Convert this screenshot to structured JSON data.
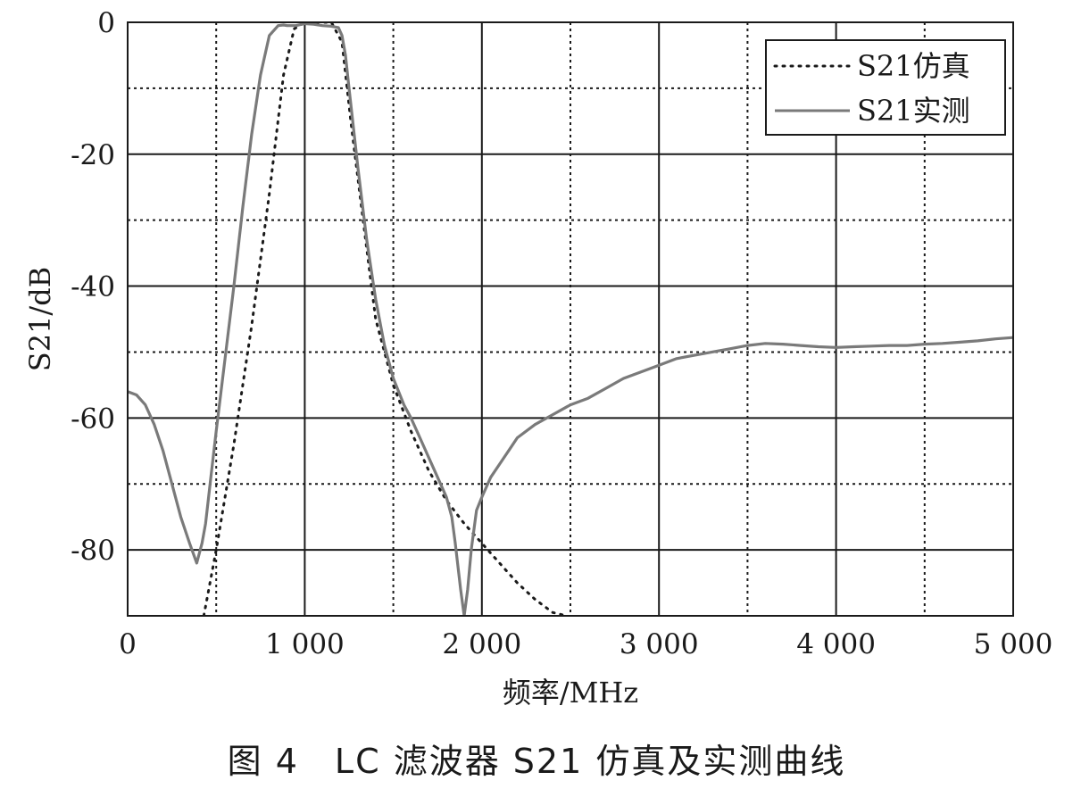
{
  "caption": "图 4　LC 滤波器 S21 仿真及实测曲线",
  "chart_data": {
    "type": "line",
    "xlabel": "频率/MHz",
    "ylabel": "S21/dB",
    "xlim": [
      0,
      5000
    ],
    "ylim": [
      -90,
      0
    ],
    "x_ticks": [
      0,
      1000,
      2000,
      3000,
      4000,
      5000
    ],
    "x_tick_labels": [
      "0",
      "1 000",
      "2 000",
      "3 000",
      "4 000",
      "5 000"
    ],
    "y_ticks": [
      0,
      -20,
      -40,
      -60,
      -80
    ],
    "y_tick_labels": [
      "0",
      "-20",
      "-40",
      "-60",
      "-80"
    ],
    "grid_x_major": [
      1000,
      2000,
      3000,
      4000
    ],
    "grid_x_minor": [
      500,
      1500,
      2500,
      3500,
      4500
    ],
    "grid_y_major": [
      -20,
      -40,
      -60,
      -80
    ],
    "grid_y_minor": [
      -10,
      -30,
      -50,
      -70
    ],
    "grid": true,
    "legend_position": "top-right",
    "colors": {
      "simulated": "#1a1a1a",
      "measured": "#7a7a7a",
      "grid": "#1a1a1a"
    },
    "series": [
      {
        "name": "S21仿真",
        "style": "dotted",
        "x": [
          430,
          500,
          600,
          700,
          800,
          880,
          940,
          1000,
          1050,
          1150,
          1210,
          1260,
          1320,
          1400,
          1500,
          1600,
          1700,
          1800,
          1900,
          2000,
          2100,
          2200,
          2300,
          2400,
          2480
        ],
        "y": [
          -90,
          -80,
          -64,
          -46,
          -26,
          -8,
          -1,
          0,
          0,
          0,
          -3,
          -15,
          -28,
          -45,
          -55,
          -62,
          -68,
          -72.5,
          -76,
          -79,
          -82,
          -85,
          -87.5,
          -89.5,
          -90
        ]
      },
      {
        "name": "S21实测",
        "style": "solid",
        "x": [
          0,
          50,
          100,
          150,
          200,
          250,
          300,
          350,
          390,
          410,
          420,
          440,
          470,
          500,
          550,
          600,
          650,
          700,
          750,
          800,
          850,
          880,
          900,
          950,
          1000,
          1050,
          1100,
          1150,
          1190,
          1210,
          1230,
          1250,
          1300,
          1350,
          1400,
          1450,
          1500,
          1530,
          1560,
          1600,
          1650,
          1700,
          1750,
          1800,
          1830,
          1850,
          1880,
          1900,
          1920,
          1940,
          1970,
          2000,
          2050,
          2100,
          2150,
          2200,
          2300,
          2400,
          2500,
          2600,
          2700,
          2800,
          2900,
          3000,
          3100,
          3200,
          3300,
          3400,
          3500,
          3600,
          3700,
          3800,
          3900,
          4000,
          4100,
          4200,
          4300,
          4400,
          4500,
          4600,
          4700,
          4800,
          4900,
          5000
        ],
        "y": [
          -56,
          -56.5,
          -58,
          -61,
          -65,
          -70,
          -75,
          -79,
          -82,
          -80,
          -79,
          -76,
          -69,
          -62,
          -51,
          -40,
          -28,
          -17,
          -8,
          -2,
          -0.5,
          -0.4,
          -0.5,
          -0.5,
          -0.2,
          -0.3,
          -0.5,
          -0.6,
          -0.8,
          -2,
          -5,
          -10,
          -22,
          -33,
          -42,
          -49,
          -54,
          -56,
          -58,
          -60,
          -63,
          -66,
          -69,
          -72,
          -75,
          -79,
          -86,
          -90,
          -86,
          -80,
          -74,
          -72,
          -69,
          -67,
          -65,
          -63,
          -61,
          -59.5,
          -58,
          -57,
          -55.5,
          -54,
          -53,
          -52,
          -51,
          -50.5,
          -50,
          -49.5,
          -49,
          -48.7,
          -48.8,
          -49,
          -49.2,
          -49.3,
          -49.2,
          -49.1,
          -49,
          -49,
          -48.8,
          -48.7,
          -48.5,
          -48.3,
          -48,
          -47.8
        ]
      }
    ]
  }
}
